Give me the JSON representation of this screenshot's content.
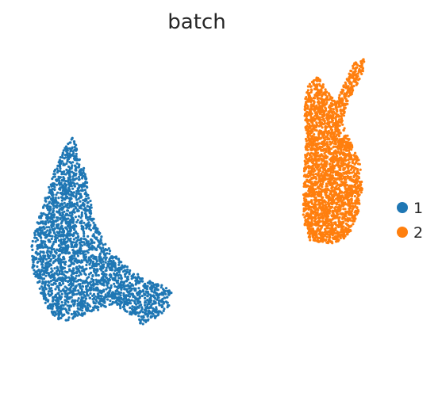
{
  "chart_data": {
    "type": "scatter",
    "title": "batch",
    "xlabel": "",
    "ylabel": "",
    "axes_visible": false,
    "grid": false,
    "legend_position": "right",
    "series": [
      {
        "name": "1",
        "color": "#1f77b4",
        "region_outline": [
          [
            0.05,
            0.48
          ],
          [
            0.12,
            0.58
          ],
          [
            0.18,
            0.66
          ],
          [
            0.24,
            0.72
          ],
          [
            0.3,
            0.76
          ],
          [
            0.36,
            0.68
          ],
          [
            0.4,
            0.6
          ],
          [
            0.44,
            0.5
          ],
          [
            0.5,
            0.44
          ],
          [
            0.56,
            0.4
          ],
          [
            0.66,
            0.36
          ],
          [
            0.78,
            0.32
          ],
          [
            0.9,
            0.3
          ],
          [
            0.96,
            0.28
          ],
          [
            0.95,
            0.24
          ],
          [
            0.86,
            0.2
          ],
          [
            0.76,
            0.18
          ],
          [
            0.66,
            0.22
          ],
          [
            0.56,
            0.24
          ],
          [
            0.44,
            0.22
          ],
          [
            0.32,
            0.2
          ],
          [
            0.22,
            0.19
          ],
          [
            0.14,
            0.22
          ],
          [
            0.06,
            0.3
          ],
          [
            0.02,
            0.36
          ],
          [
            0.02,
            0.42
          ]
        ],
        "x_range": [
          0.0,
          1.0
        ],
        "y_range": [
          0.0,
          1.0
        ],
        "point_count": 2600
      },
      {
        "name": "2",
        "color": "#ff7f0e",
        "region_outline": [
          [
            1.85,
            0.86
          ],
          [
            1.88,
            0.92
          ],
          [
            1.94,
            0.94
          ],
          [
            2.0,
            0.9
          ],
          [
            2.06,
            0.86
          ],
          [
            2.12,
            0.92
          ],
          [
            2.18,
            0.98
          ],
          [
            2.26,
            1.0
          ],
          [
            2.24,
            0.95
          ],
          [
            2.16,
            0.88
          ],
          [
            2.1,
            0.8
          ],
          [
            2.16,
            0.74
          ],
          [
            2.22,
            0.68
          ],
          [
            2.24,
            0.6
          ],
          [
            2.22,
            0.54
          ],
          [
            2.18,
            0.48
          ],
          [
            2.12,
            0.44
          ],
          [
            2.04,
            0.43
          ],
          [
            1.96,
            0.43
          ],
          [
            1.88,
            0.44
          ],
          [
            1.84,
            0.5
          ],
          [
            1.84,
            0.58
          ],
          [
            1.85,
            0.66
          ],
          [
            1.86,
            0.74
          ],
          [
            1.85,
            0.8
          ]
        ],
        "x_range": [
          1.8,
          2.3
        ],
        "y_range": [
          0.4,
          1.0
        ],
        "point_count": 2600
      }
    ]
  },
  "legend": [
    {
      "label": "1",
      "color": "#1f77b4"
    },
    {
      "label": "2",
      "color": "#ff7f0e"
    }
  ]
}
